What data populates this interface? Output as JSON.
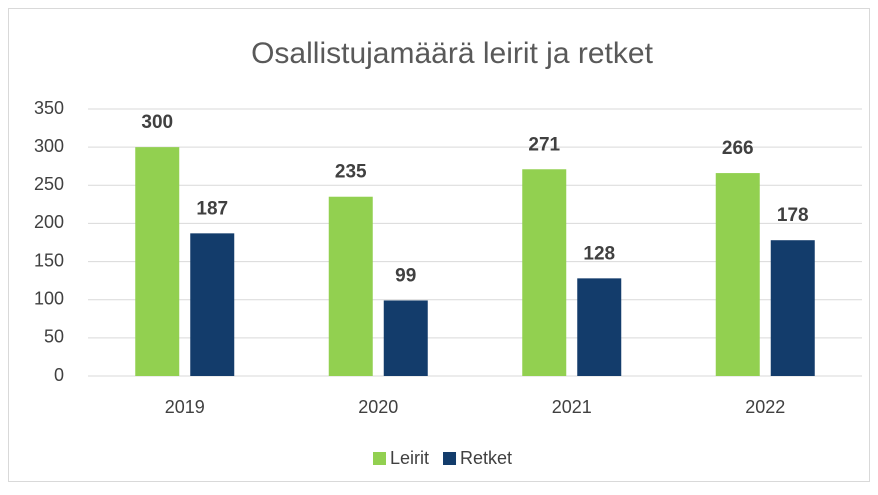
{
  "chart_data": {
    "type": "bar",
    "title": "Osallistujamäärä leirit ja retket",
    "categories": [
      "2019",
      "2020",
      "2021",
      "2022"
    ],
    "series": [
      {
        "name": "Leirit",
        "color": "#92d050",
        "values": [
          300,
          235,
          271,
          266
        ]
      },
      {
        "name": "Retket",
        "color": "#133c6b",
        "values": [
          187,
          99,
          128,
          178
        ]
      }
    ],
    "ylim": [
      0,
      350
    ],
    "yticks": [
      0,
      50,
      100,
      150,
      200,
      250,
      300,
      350
    ],
    "grid": true,
    "legend": "bottom"
  }
}
